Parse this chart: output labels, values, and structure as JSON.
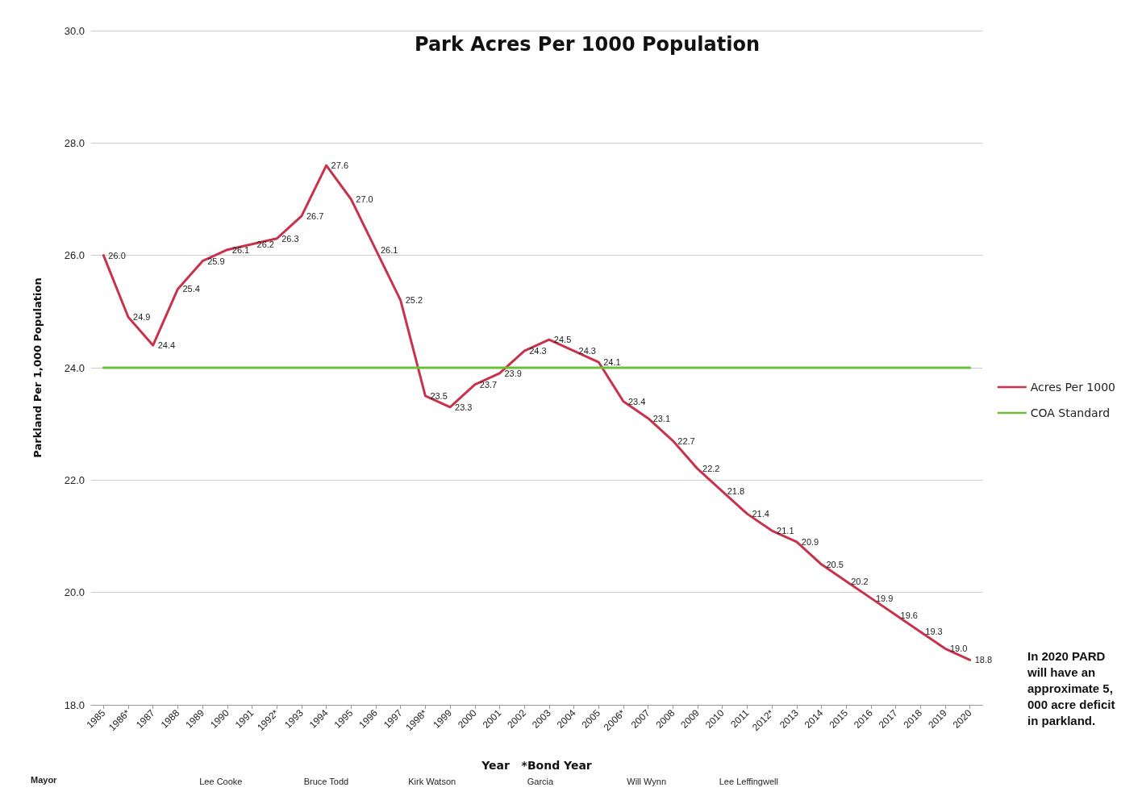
{
  "chart_data": {
    "type": "line",
    "title": "Park Acres Per 1000 Population",
    "xlabel": "Year   *Bond Year",
    "ylabel": "Parkland Per 1,000 Population",
    "categories": [
      "1985",
      "1986*",
      "1987",
      "1988",
      "1989",
      "1990",
      "1991",
      "1992*",
      "1993",
      "1994",
      "1995",
      "1996",
      "1997",
      "1998*",
      "1999",
      "2000",
      "2001",
      "2002",
      "2003",
      "2004",
      "2005",
      "2006*",
      "2007",
      "2008",
      "2009",
      "2010",
      "2011",
      "2012*",
      "2013",
      "2014",
      "2015",
      "2016",
      "2017",
      "2018",
      "2019",
      "2020"
    ],
    "series": [
      {
        "name": "Acres Per 1000",
        "color": "#c8324a",
        "values": [
          26.0,
          24.9,
          24.4,
          25.4,
          25.9,
          26.1,
          26.2,
          26.3,
          26.7,
          27.6,
          27.0,
          26.1,
          25.2,
          23.5,
          23.3,
          23.7,
          23.9,
          24.3,
          24.5,
          24.3,
          24.1,
          23.4,
          23.1,
          22.7,
          22.2,
          21.8,
          21.4,
          21.1,
          20.9,
          20.5,
          20.2,
          19.9,
          19.6,
          19.3,
          19.0,
          18.8
        ],
        "value_labels": [
          "26.0",
          "24.9",
          "24.4",
          "25.4",
          "25.9",
          "26.1",
          "26.2",
          "26.3",
          "26.7",
          "27.6",
          "27.0",
          "26.1",
          "25.2",
          "23.5",
          "23.3",
          "23.7",
          "23.9",
          "24.3",
          "24.5",
          "24.3",
          "24.1",
          "23.4",
          "23.1",
          "22.7",
          "22.2",
          "21.8",
          "21.4",
          "21.1",
          "20.9",
          "20.5",
          "20.2",
          "19.9",
          "19.6",
          "19.3",
          "19.0",
          "18.8"
        ]
      },
      {
        "name": "COA Standard",
        "color": "#6cbf3a",
        "values": [
          24.0,
          24.0,
          24.0,
          24.0,
          24.0,
          24.0,
          24.0,
          24.0,
          24.0,
          24.0,
          24.0,
          24.0,
          24.0,
          24.0,
          24.0,
          24.0,
          24.0,
          24.0,
          24.0,
          24.0,
          24.0,
          24.0,
          24.0,
          24.0,
          24.0,
          24.0,
          24.0,
          24.0,
          24.0,
          24.0,
          24.0,
          24.0,
          24.0,
          24.0,
          24.0,
          24.0
        ]
      }
    ],
    "ylim": [
      18,
      30
    ],
    "yticks": [
      {
        "value": 18,
        "label": "18.0"
      },
      {
        "value": 20,
        "label": "20.0"
      },
      {
        "value": 22,
        "label": "22.0"
      },
      {
        "value": 24,
        "label": "24.0"
      },
      {
        "value": 26,
        "label": "26.0"
      },
      {
        "value": 28,
        "label": "28.0"
      },
      {
        "value": 30,
        "label": "30.0"
      }
    ],
    "grid": "y",
    "legend": "right",
    "marker": "none",
    "line_style": "solid",
    "annotations": [
      "Mayor",
      "Lee Cooke",
      "Bruce Todd",
      "Kirk Watson",
      "Garcia",
      "Will Wynn",
      "Lee Leffingwell",
      "In 2020 PARD will have an approximate 5,000 acre deficit in parkland."
    ]
  }
}
